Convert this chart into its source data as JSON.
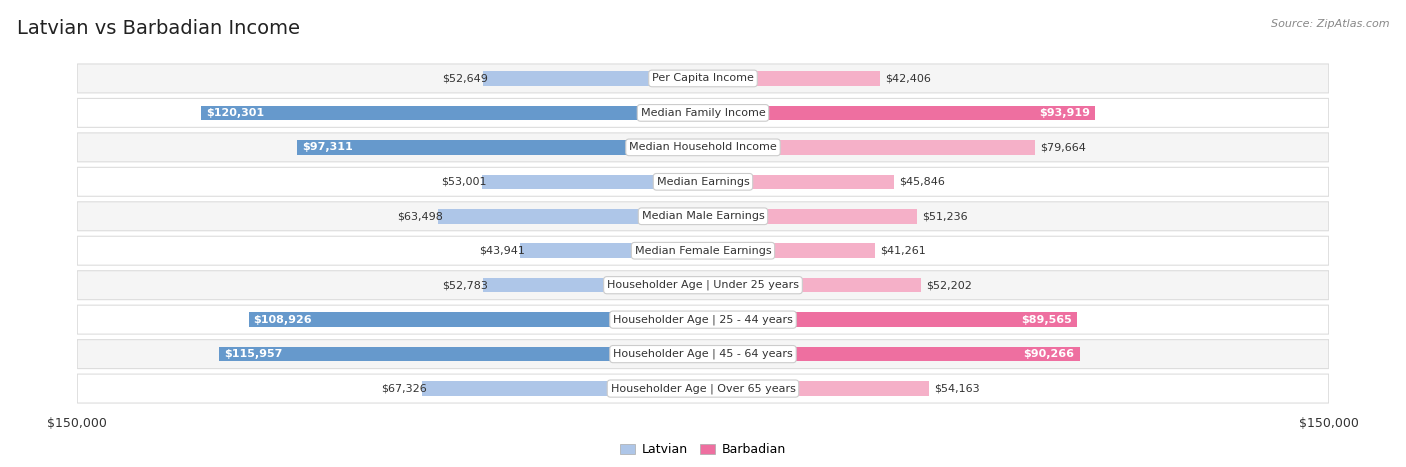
{
  "title": "Latvian vs Barbadian Income",
  "source": "Source: ZipAtlas.com",
  "categories": [
    "Per Capita Income",
    "Median Family Income",
    "Median Household Income",
    "Median Earnings",
    "Median Male Earnings",
    "Median Female Earnings",
    "Householder Age | Under 25 years",
    "Householder Age | 25 - 44 years",
    "Householder Age | 45 - 64 years",
    "Householder Age | Over 65 years"
  ],
  "latvian_values": [
    52649,
    120301,
    97311,
    53001,
    63498,
    43941,
    52783,
    108926,
    115957,
    67326
  ],
  "barbadian_values": [
    42406,
    93919,
    79664,
    45846,
    51236,
    41261,
    52202,
    89565,
    90266,
    54163
  ],
  "latvian_labels": [
    "$52,649",
    "$120,301",
    "$97,311",
    "$53,001",
    "$63,498",
    "$43,941",
    "$52,783",
    "$108,926",
    "$115,957",
    "$67,326"
  ],
  "barbadian_labels": [
    "$42,406",
    "$93,919",
    "$79,664",
    "$45,846",
    "$51,236",
    "$41,261",
    "$52,202",
    "$89,565",
    "$90,266",
    "$54,163"
  ],
  "latvian_color_light": "#aec6e8",
  "latvian_color_dark": "#6699cc",
  "barbadian_color_light": "#f5b0c8",
  "barbadian_color_dark": "#ee6fa0",
  "background_color": "#ffffff",
  "row_bg_even": "#f5f5f5",
  "row_bg_odd": "#ffffff",
  "row_border_color": "#dddddd",
  "axis_max": 150000,
  "title_fontsize": 14,
  "label_fontsize": 8,
  "category_fontsize": 8,
  "legend_fontsize": 9,
  "source_fontsize": 8,
  "large_threshold": 0.58
}
